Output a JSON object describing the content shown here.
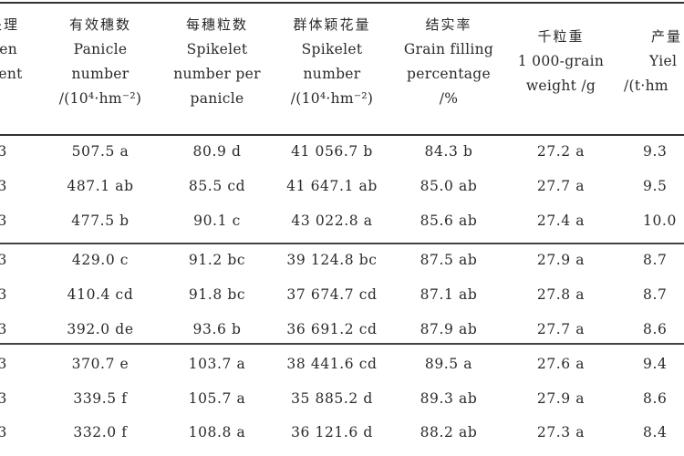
{
  "table": {
    "headers": [
      {
        "zh": "处理",
        "lines": [
          "gen",
          "ment"
        ]
      },
      {
        "zh": "有效穗数",
        "lines": [
          "Panicle",
          "number",
          "/(10⁴·hm⁻²)"
        ]
      },
      {
        "zh": "每穗粒数",
        "lines": [
          "Spikelet",
          "number per",
          "panicle"
        ]
      },
      {
        "zh": "群体颖花量",
        "lines": [
          "Spikelet",
          "number",
          "/(10⁴·hm⁻²)"
        ]
      },
      {
        "zh": "结实率",
        "lines": [
          "Grain filling",
          "percentage",
          "/%"
        ]
      },
      {
        "zh": "千粒重",
        "lines": [
          "1 000-grain",
          "weight /g"
        ]
      },
      {
        "zh": "产量",
        "lines": [
          "Yiel",
          "/(t·hm"
        ]
      }
    ],
    "rows": [
      [
        "3",
        "507.5 a",
        "80.9 d",
        "41 056.7 b",
        "84.3 b",
        "27.2 a",
        "9.3"
      ],
      [
        "3",
        "487.1 ab",
        "85.5 cd",
        "41 647.1 ab",
        "85.0 ab",
        "27.7 a",
        "9.5"
      ],
      [
        "3",
        "477.5 b",
        "90.1 c",
        "43 022.8 a",
        "85.6 ab",
        "27.4 a",
        "10.0"
      ],
      [
        "3",
        "429.0 c",
        "91.2 bc",
        "39 124.8 bc",
        "87.5 ab",
        "27.9 a",
        "8.7"
      ],
      [
        "3",
        "410.4 cd",
        "91.8 bc",
        "37 674.7 cd",
        "87.1 ab",
        "27.8 a",
        "8.7"
      ],
      [
        "3",
        "392.0 de",
        "93.6 b",
        "36 691.2 cd",
        "87.9 ab",
        "27.7 a",
        "8.6"
      ],
      [
        "3",
        "370.7 e",
        "103.7 a",
        "38 441.6 cd",
        "89.5 a",
        "27.6 a",
        "9.4"
      ],
      [
        "3",
        "339.5 f",
        "105.7 a",
        "35 885.2 d",
        "89.3 ab",
        "27.9 a",
        "8.6"
      ],
      [
        "3",
        "332.0 f",
        "108.8 a",
        "36 121.6 d",
        "88.2 ab",
        "27.3 a",
        "8.4"
      ]
    ]
  }
}
